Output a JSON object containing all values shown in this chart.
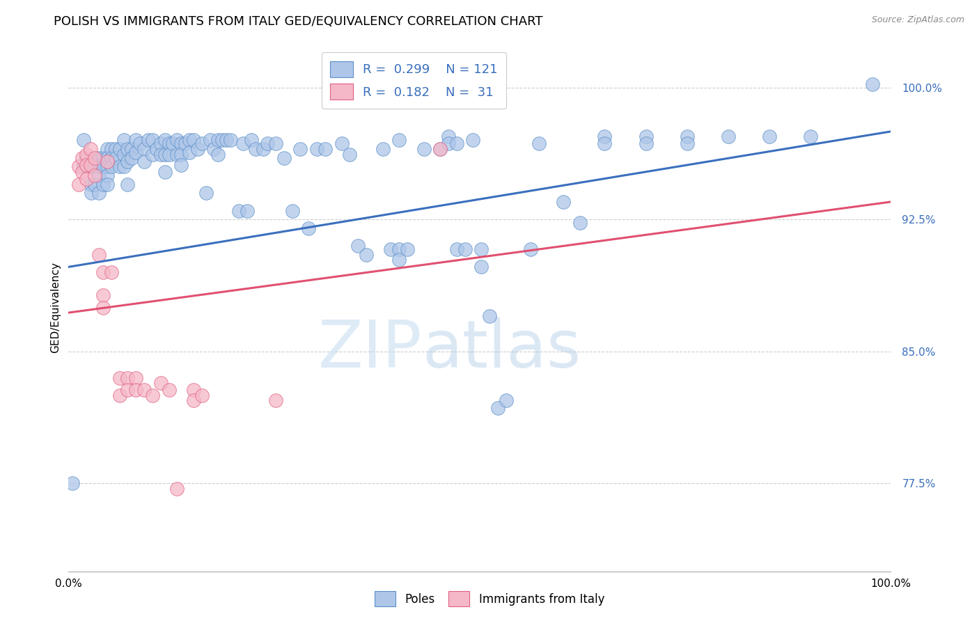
{
  "title": "POLISH VS IMMIGRANTS FROM ITALY GED/EQUIVALENCY CORRELATION CHART",
  "source": "Source: ZipAtlas.com",
  "ylabel": "GED/Equivalency",
  "xlim": [
    0.0,
    1.0
  ],
  "ylim": [
    0.725,
    1.025
  ],
  "y_tick_values": [
    0.775,
    0.85,
    0.925,
    1.0
  ],
  "y_tick_labels": [
    "77.5%",
    "85.0%",
    "92.5%",
    "100.0%"
  ],
  "blue_R": 0.299,
  "blue_N": 121,
  "pink_R": 0.182,
  "pink_N": 31,
  "blue_color": "#aec6e8",
  "pink_color": "#f5b8c8",
  "blue_edge_color": "#5b8fc9",
  "pink_edge_color": "#e06080",
  "blue_line_color": "#3a6fbd",
  "pink_line_color": "#e05070",
  "blue_points": [
    [
      0.005,
      0.775
    ],
    [
      0.018,
      0.97
    ],
    [
      0.018,
      0.955
    ],
    [
      0.022,
      0.96
    ],
    [
      0.028,
      0.955
    ],
    [
      0.028,
      0.945
    ],
    [
      0.028,
      0.94
    ],
    [
      0.032,
      0.955
    ],
    [
      0.032,
      0.945
    ],
    [
      0.037,
      0.96
    ],
    [
      0.037,
      0.955
    ],
    [
      0.037,
      0.95
    ],
    [
      0.037,
      0.94
    ],
    [
      0.042,
      0.96
    ],
    [
      0.042,
      0.955
    ],
    [
      0.042,
      0.945
    ],
    [
      0.047,
      0.965
    ],
    [
      0.047,
      0.96
    ],
    [
      0.047,
      0.955
    ],
    [
      0.047,
      0.95
    ],
    [
      0.047,
      0.945
    ],
    [
      0.052,
      0.965
    ],
    [
      0.052,
      0.96
    ],
    [
      0.052,
      0.955
    ],
    [
      0.057,
      0.965
    ],
    [
      0.057,
      0.96
    ],
    [
      0.062,
      0.965
    ],
    [
      0.062,
      0.955
    ],
    [
      0.067,
      0.97
    ],
    [
      0.067,
      0.962
    ],
    [
      0.067,
      0.955
    ],
    [
      0.072,
      0.965
    ],
    [
      0.072,
      0.958
    ],
    [
      0.072,
      0.945
    ],
    [
      0.077,
      0.965
    ],
    [
      0.077,
      0.96
    ],
    [
      0.082,
      0.97
    ],
    [
      0.082,
      0.963
    ],
    [
      0.087,
      0.968
    ],
    [
      0.092,
      0.965
    ],
    [
      0.092,
      0.958
    ],
    [
      0.097,
      0.97
    ],
    [
      0.102,
      0.97
    ],
    [
      0.102,
      0.962
    ],
    [
      0.107,
      0.965
    ],
    [
      0.112,
      0.968
    ],
    [
      0.112,
      0.962
    ],
    [
      0.117,
      0.97
    ],
    [
      0.117,
      0.962
    ],
    [
      0.117,
      0.952
    ],
    [
      0.122,
      0.968
    ],
    [
      0.122,
      0.962
    ],
    [
      0.127,
      0.968
    ],
    [
      0.132,
      0.97
    ],
    [
      0.132,
      0.962
    ],
    [
      0.137,
      0.968
    ],
    [
      0.137,
      0.962
    ],
    [
      0.137,
      0.956
    ],
    [
      0.142,
      0.968
    ],
    [
      0.147,
      0.97
    ],
    [
      0.147,
      0.963
    ],
    [
      0.152,
      0.97
    ],
    [
      0.157,
      0.965
    ],
    [
      0.162,
      0.968
    ],
    [
      0.167,
      0.94
    ],
    [
      0.172,
      0.97
    ],
    [
      0.177,
      0.965
    ],
    [
      0.182,
      0.97
    ],
    [
      0.182,
      0.962
    ],
    [
      0.187,
      0.97
    ],
    [
      0.192,
      0.97
    ],
    [
      0.197,
      0.97
    ],
    [
      0.207,
      0.93
    ],
    [
      0.212,
      0.968
    ],
    [
      0.217,
      0.93
    ],
    [
      0.222,
      0.97
    ],
    [
      0.227,
      0.965
    ],
    [
      0.237,
      0.965
    ],
    [
      0.242,
      0.968
    ],
    [
      0.252,
      0.968
    ],
    [
      0.262,
      0.96
    ],
    [
      0.272,
      0.93
    ],
    [
      0.282,
      0.965
    ],
    [
      0.292,
      0.92
    ],
    [
      0.302,
      0.965
    ],
    [
      0.312,
      0.965
    ],
    [
      0.332,
      0.968
    ],
    [
      0.342,
      0.962
    ],
    [
      0.352,
      0.91
    ],
    [
      0.362,
      0.905
    ],
    [
      0.382,
      0.965
    ],
    [
      0.392,
      0.908
    ],
    [
      0.402,
      0.97
    ],
    [
      0.402,
      0.908
    ],
    [
      0.402,
      0.902
    ],
    [
      0.412,
      0.908
    ],
    [
      0.432,
      0.965
    ],
    [
      0.452,
      0.965
    ],
    [
      0.462,
      0.972
    ],
    [
      0.462,
      0.968
    ],
    [
      0.472,
      0.968
    ],
    [
      0.472,
      0.908
    ],
    [
      0.482,
      0.908
    ],
    [
      0.492,
      0.97
    ],
    [
      0.502,
      0.908
    ],
    [
      0.502,
      0.898
    ],
    [
      0.512,
      0.87
    ],
    [
      0.522,
      0.818
    ],
    [
      0.532,
      0.822
    ],
    [
      0.562,
      0.908
    ],
    [
      0.572,
      0.968
    ],
    [
      0.602,
      0.935
    ],
    [
      0.622,
      0.923
    ],
    [
      0.652,
      0.972
    ],
    [
      0.652,
      0.968
    ],
    [
      0.702,
      0.972
    ],
    [
      0.702,
      0.968
    ],
    [
      0.752,
      0.972
    ],
    [
      0.752,
      0.968
    ],
    [
      0.802,
      0.972
    ],
    [
      0.852,
      0.972
    ],
    [
      0.902,
      0.972
    ],
    [
      0.978,
      1.002
    ]
  ],
  "pink_points": [
    [
      0.012,
      0.955
    ],
    [
      0.012,
      0.945
    ],
    [
      0.017,
      0.96
    ],
    [
      0.017,
      0.952
    ],
    [
      0.022,
      0.962
    ],
    [
      0.022,
      0.956
    ],
    [
      0.022,
      0.948
    ],
    [
      0.027,
      0.965
    ],
    [
      0.027,
      0.956
    ],
    [
      0.032,
      0.96
    ],
    [
      0.032,
      0.95
    ],
    [
      0.037,
      0.905
    ],
    [
      0.042,
      0.895
    ],
    [
      0.042,
      0.882
    ],
    [
      0.042,
      0.875
    ],
    [
      0.047,
      0.958
    ],
    [
      0.052,
      0.895
    ],
    [
      0.062,
      0.835
    ],
    [
      0.062,
      0.825
    ],
    [
      0.072,
      0.835
    ],
    [
      0.072,
      0.828
    ],
    [
      0.082,
      0.835
    ],
    [
      0.082,
      0.828
    ],
    [
      0.092,
      0.828
    ],
    [
      0.102,
      0.825
    ],
    [
      0.112,
      0.832
    ],
    [
      0.122,
      0.828
    ],
    [
      0.132,
      0.772
    ],
    [
      0.152,
      0.828
    ],
    [
      0.152,
      0.822
    ],
    [
      0.162,
      0.825
    ],
    [
      0.252,
      0.822
    ],
    [
      0.452,
      0.965
    ]
  ],
  "blue_trend": [
    0.0,
    0.898,
    1.0,
    0.975
  ],
  "pink_trend": [
    0.0,
    0.872,
    1.0,
    0.935
  ],
  "watermark_zip": "ZIP",
  "watermark_atlas": "atlas",
  "title_fontsize": 13,
  "label_fontsize": 11,
  "tick_fontsize": 11,
  "legend_fontsize": 13
}
